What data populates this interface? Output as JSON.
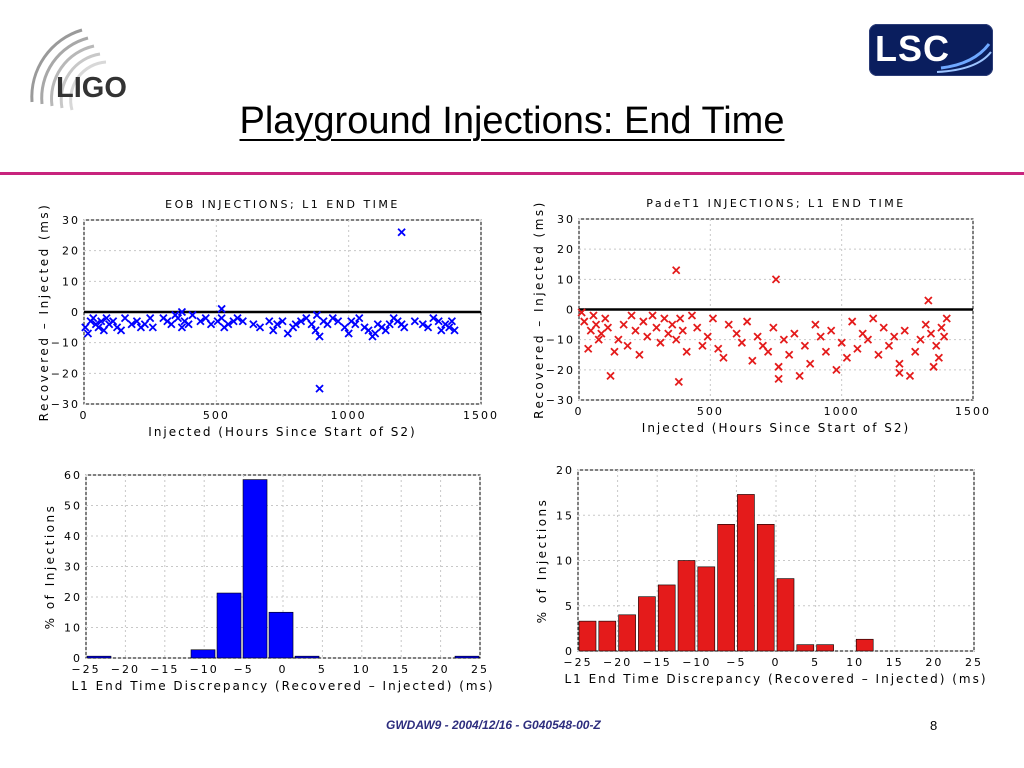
{
  "header": {
    "title": "Playground Injections: End Time",
    "logo_left": "LIGO",
    "logo_right": "LSC"
  },
  "footer": {
    "text": "GWDAW9 - 2004/12/16 - G040548-00-Z",
    "page": "8"
  },
  "colors": {
    "blue": "#0000ff",
    "red": "#e41b1b",
    "divider": "#c8237d"
  },
  "chart_data": [
    {
      "id": "eob-scatter",
      "type": "scatter",
      "title": "EOB INJECTIONS; L1 END TIME",
      "xlabel": "Injected (Hours Since Start of S2)",
      "ylabel": "Recovered – Injected (ms)",
      "xlim": [
        0,
        1500
      ],
      "ylim": [
        -30,
        30
      ],
      "xticks": [
        0,
        500,
        1000,
        1500
      ],
      "yticks": [
        -30,
        -20,
        -10,
        0,
        10,
        20,
        30
      ],
      "grid": true,
      "color": "#0000ff",
      "hline": 0,
      "series": [
        {
          "x": [
            5,
            15,
            25,
            35,
            45,
            55,
            65,
            75,
            85,
            95,
            110,
            125,
            140,
            155,
            180,
            200,
            215,
            230,
            250,
            260,
            300,
            315,
            330,
            345,
            355,
            370,
            380,
            395,
            410,
            440,
            460,
            480,
            505,
            520,
            530,
            545,
            565,
            580,
            600,
            640,
            665,
            700,
            715,
            730,
            750,
            770,
            790,
            800,
            820,
            840,
            860,
            875,
            890,
            905,
            920,
            940,
            960,
            985,
            1000,
            1010,
            1025,
            1040,
            1060,
            1075,
            1090,
            1100,
            1110,
            1125,
            1140,
            1155,
            1170,
            1185,
            1200,
            1210,
            1250,
            1280,
            1300,
            1320,
            1340,
            1350,
            1365,
            1380,
            1390,
            1400,
            370,
            520,
            880,
            1200,
            890
          ],
          "y": [
            -5,
            -7,
            -3,
            -2,
            -4,
            -5,
            -3,
            -6,
            -2,
            -4,
            -3,
            -5,
            -6,
            -2,
            -4,
            -3,
            -5,
            -4,
            -2,
            -5,
            -2,
            -3,
            -4,
            -1,
            -2,
            -5,
            -3,
            -4,
            -1,
            -3,
            -2,
            -4,
            -3,
            -2,
            -5,
            -4,
            -3,
            -2,
            -3,
            -4,
            -5,
            -3,
            -6,
            -4,
            -3,
            -7,
            -5,
            -4,
            -3,
            -2,
            -4,
            -6,
            -8,
            -3,
            -4,
            -2,
            -3,
            -5,
            -7,
            -3,
            -4,
            -2,
            -5,
            -6,
            -8,
            -7,
            -4,
            -5,
            -6,
            -4,
            -2,
            -3,
            -4,
            -5,
            -3,
            -4,
            -5,
            -2,
            -3,
            -6,
            -4,
            -5,
            -3,
            -6,
            0,
            1,
            -1,
            26,
            -25
          ]
        }
      ]
    },
    {
      "id": "padet1-scatter",
      "type": "scatter",
      "title": "PadeT1 INJECTIONS; L1 END TIME",
      "xlabel": "Injected (Hours Since Start of S2)",
      "ylabel": "Recovered – Injected (ms)",
      "xlim": [
        0,
        1500
      ],
      "ylim": [
        -30,
        30
      ],
      "xticks": [
        0,
        500,
        1000,
        1500
      ],
      "yticks": [
        -30,
        -20,
        -10,
        0,
        10,
        20,
        30
      ],
      "grid": true,
      "color": "#e41b1b",
      "hline": 0,
      "series": [
        {
          "x": [
            10,
            20,
            35,
            45,
            55,
            65,
            75,
            85,
            100,
            110,
            120,
            135,
            150,
            170,
            185,
            200,
            215,
            230,
            245,
            260,
            280,
            295,
            310,
            325,
            340,
            355,
            370,
            385,
            395,
            410,
            430,
            450,
            470,
            490,
            510,
            530,
            550,
            570,
            600,
            620,
            640,
            660,
            680,
            700,
            720,
            740,
            760,
            780,
            800,
            820,
            840,
            860,
            880,
            900,
            920,
            940,
            960,
            980,
            1000,
            1020,
            1040,
            1060,
            1080,
            1100,
            1120,
            1140,
            1160,
            1180,
            1200,
            1220,
            1240,
            1260,
            1280,
            1300,
            1320,
            1340,
            1350,
            1360,
            1370,
            1380,
            1390,
            1400,
            370,
            380,
            750,
            760,
            1220,
            1330
          ],
          "y": [
            -1,
            -4,
            -13,
            -7,
            -2,
            -5,
            -10,
            -8,
            -3,
            -6,
            -22,
            -14,
            -10,
            -5,
            -12,
            -2,
            -7,
            -15,
            -4,
            -9,
            -2,
            -6,
            -11,
            -3,
            -8,
            -5,
            -10,
            -3,
            -7,
            -14,
            -2,
            -6,
            -12,
            -9,
            -3,
            -13,
            -16,
            -5,
            -8,
            -11,
            -4,
            -17,
            -9,
            -12,
            -14,
            -6,
            -19,
            -10,
            -15,
            -8,
            -22,
            -12,
            -18,
            -5,
            -9,
            -14,
            -7,
            -20,
            -11,
            -16,
            -4,
            -13,
            -8,
            -10,
            -3,
            -15,
            -6,
            -12,
            -9,
            -18,
            -7,
            -22,
            -14,
            -10,
            -5,
            -8,
            -19,
            -12,
            -16,
            -6,
            -9,
            -3,
            13,
            -24,
            10,
            -23,
            -21,
            3
          ]
        }
      ]
    },
    {
      "id": "eob-hist",
      "type": "bar",
      "xlabel": "L1 End Time Discrepancy (Recovered – Injected) (ms)",
      "ylabel": "% of Injections",
      "xlim": [
        -25,
        25
      ],
      "ylim": [
        0,
        60
      ],
      "xticks": [
        -25,
        -20,
        -15,
        -10,
        -5,
        0,
        5,
        10,
        15,
        20,
        25
      ],
      "yticks": [
        0,
        10,
        20,
        30,
        40,
        50,
        60
      ],
      "bin_width": 3.3,
      "color": "#0000ff",
      "grid": true,
      "bins": [
        {
          "x": -23.35,
          "value": 0.6
        },
        {
          "x": -10.15,
          "value": 2.7
        },
        {
          "x": -6.85,
          "value": 21.3
        },
        {
          "x": -3.55,
          "value": 58.5
        },
        {
          "x": -0.25,
          "value": 15.0
        },
        {
          "x": 3.05,
          "value": 0.6
        },
        {
          "x": 23.35,
          "value": 0.6
        }
      ]
    },
    {
      "id": "padet1-hist",
      "type": "bar",
      "xlabel": "L1 End Time Discrepancy (Recovered – Injected) (ms)",
      "ylabel": "% of Injections",
      "xlim": [
        -25,
        25
      ],
      "ylim": [
        0,
        20
      ],
      "xticks": [
        -25,
        -20,
        -15,
        -10,
        -5,
        0,
        5,
        10,
        15,
        20,
        25
      ],
      "yticks": [
        0,
        5,
        10,
        15,
        20
      ],
      "bin_width": 2.4,
      "color": "#e41b1b",
      "grid": true,
      "bins": [
        {
          "x": -23.8,
          "value": 3.3
        },
        {
          "x": -21.3,
          "value": 3.3
        },
        {
          "x": -18.8,
          "value": 4.0
        },
        {
          "x": -16.3,
          "value": 6.0
        },
        {
          "x": -13.8,
          "value": 7.3
        },
        {
          "x": -11.3,
          "value": 10.0
        },
        {
          "x": -8.8,
          "value": 9.3
        },
        {
          "x": -6.3,
          "value": 14.0
        },
        {
          "x": -3.8,
          "value": 17.3
        },
        {
          "x": -1.3,
          "value": 14.0
        },
        {
          "x": 1.2,
          "value": 8.0
        },
        {
          "x": 3.7,
          "value": 0.7
        },
        {
          "x": 6.2,
          "value": 0.7
        },
        {
          "x": 11.2,
          "value": 1.3
        }
      ]
    }
  ]
}
